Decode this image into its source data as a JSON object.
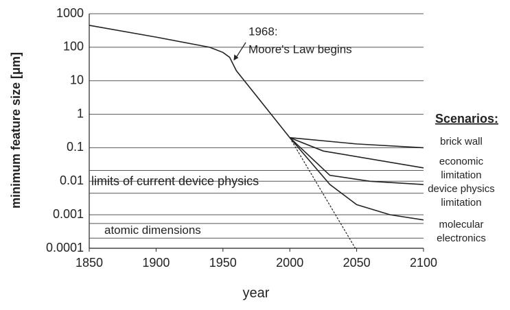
{
  "chart_data": {
    "type": "line",
    "log_y": true,
    "grid": true,
    "xlabel": "year",
    "ylabel": "minimum feature size [μm]",
    "xlim": [
      1850,
      2100
    ],
    "xticks": [
      1850,
      1900,
      1950,
      2000,
      2050,
      2100
    ],
    "ylim": [
      0.0001,
      1000
    ],
    "yticks": [
      1000,
      100,
      10,
      1,
      0.1,
      0.01,
      0.001,
      0.0001
    ],
    "annotation": {
      "lines": [
        "1968:",
        "Moore's Law begins"
      ],
      "x": 1958,
      "y": 40
    },
    "bands": [
      {
        "label": "limits of current device physics",
        "range": [
          0.0044,
          0.021
        ]
      },
      {
        "label": "atomic dimensions",
        "range": [
          0.0002,
          0.00055
        ]
      }
    ],
    "legend_title": "Scenarios:",
    "series": [
      {
        "color": "#222",
        "x": [
          1850,
          1900,
          1940,
          1950,
          1955,
          1960,
          1980,
          2000
        ],
        "values": [
          450,
          200,
          100,
          70,
          50,
          20,
          2,
          0.2
        ]
      },
      {
        "color": "#222",
        "dashed": true,
        "x": [
          2000,
          2049
        ],
        "values": [
          0.2,
          0.0001
        ]
      },
      {
        "name": [
          "brick wall"
        ],
        "color": "#222",
        "x": [
          2000,
          2050,
          2100
        ],
        "values": [
          0.2,
          0.13,
          0.1
        ]
      },
      {
        "name": [
          "economic",
          "limitation"
        ],
        "color": "#222",
        "x": [
          2000,
          2025,
          2100
        ],
        "values": [
          0.2,
          0.08,
          0.025
        ]
      },
      {
        "name": [
          "device physics",
          "limitation"
        ],
        "color": "#222",
        "x": [
          2000,
          2030,
          2060,
          2100
        ],
        "values": [
          0.2,
          0.015,
          0.01,
          0.008
        ]
      },
      {
        "name": [
          "molecular",
          "electronics"
        ],
        "color": "#222",
        "x": [
          2000,
          2030,
          2050,
          2075,
          2100
        ],
        "values": [
          0.2,
          0.008,
          0.002,
          0.001,
          0.0007
        ]
      }
    ]
  }
}
